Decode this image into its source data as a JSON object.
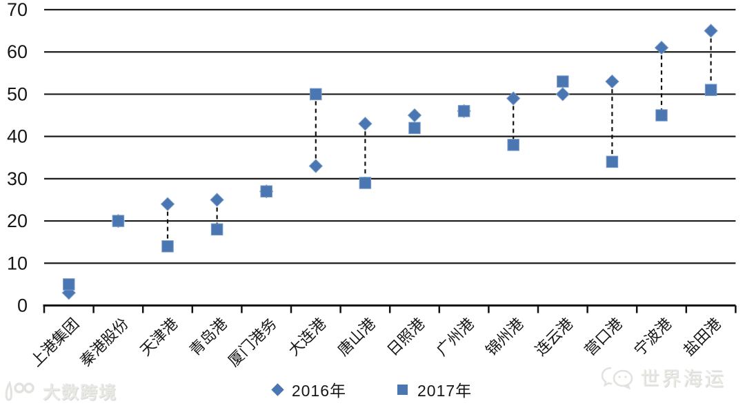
{
  "chart_data": {
    "type": "scatter",
    "subtype": "dumbbell-vertical-dashed-connectors",
    "title": "",
    "categories": [
      "上港集团",
      "秦港股份",
      "天津港",
      "青岛港",
      "厦门港务",
      "大连港",
      "唐山港",
      "日照港",
      "广州港",
      "锦州港",
      "连云港",
      "营口港",
      "宁波港",
      "盐田港"
    ],
    "series": [
      {
        "name": "2016年",
        "marker": "diamond",
        "values": [
          3,
          20,
          24,
          25,
          27,
          33,
          43,
          45,
          46,
          49,
          50,
          53,
          61,
          65
        ]
      },
      {
        "name": "2017年",
        "marker": "square",
        "values": [
          5,
          20,
          14,
          18,
          27,
          50,
          29,
          42,
          46,
          38,
          53,
          34,
          45,
          51
        ]
      }
    ],
    "xlabel": "",
    "ylabel": "",
    "ylim": [
      0,
      70
    ],
    "ytick_interval": 10,
    "ytick_labels": [
      "0",
      "10",
      "20",
      "30",
      "40",
      "50",
      "60",
      "70"
    ],
    "grid": "horizontal-only",
    "legend_position": "bottom-center",
    "x_label_rotation_deg": 45
  },
  "legend": {
    "items": [
      {
        "label": "2016年",
        "marker": "diamond"
      },
      {
        "label": "2017年",
        "marker": "square"
      }
    ]
  },
  "watermarks": {
    "bottom_left": {
      "logo": "hundred-loop-logo",
      "text": "大数跨境"
    },
    "bottom_right": {
      "logo": "chat-bubbles-logo",
      "text": "世界海运"
    }
  },
  "colors": {
    "marker": "#4a76b2",
    "marker_edge": "#7b9cc9",
    "grid": "#1a1a1a",
    "axis": "#111111",
    "text": "#161616",
    "connector": "#111111",
    "watermark": "#e9e9e5"
  }
}
